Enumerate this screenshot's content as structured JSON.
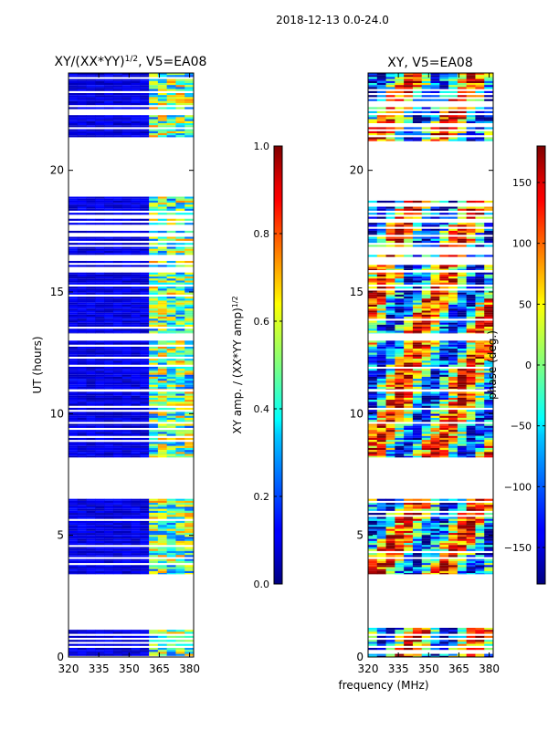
{
  "figure_title": "2018-12-13 0.0-24.0",
  "xlabel_shared": "frequency (MHz)",
  "chart_data": [
    {
      "type": "heatmap",
      "title": "XY/(XX*YY)",
      "title_sup": "1/2",
      "title_suffix": ", V5=EA08",
      "xlabel": "",
      "ylabel": "UT (hours)",
      "xlim": [
        320,
        382
      ],
      "ylim": [
        0,
        24
      ],
      "x_ticks": [
        320,
        335,
        350,
        365,
        380
      ],
      "y_ticks": [
        0,
        5,
        10,
        15,
        20
      ],
      "colorbar": {
        "label": "XY amp. / (XX*YY amp)",
        "label_sup": "1/2",
        "range": [
          0.0,
          1.0
        ],
        "ticks": [
          "0.0",
          "0.2",
          "0.4",
          "0.6",
          "0.8",
          "1.0"
        ],
        "colormap": "jet"
      },
      "data_blocks": [
        {
          "t_start": 0.0,
          "t_end": 1.2,
          "style": "sparse"
        },
        {
          "t_start": 3.4,
          "t_end": 6.5,
          "style": "dense"
        },
        {
          "t_start": 8.2,
          "t_end": 10.9,
          "style": "dense"
        },
        {
          "t_start": 11.0,
          "t_end": 13.0,
          "style": "dense"
        },
        {
          "t_start": 13.3,
          "t_end": 15.8,
          "style": "dense"
        },
        {
          "t_start": 15.9,
          "t_end": 19.0,
          "style": "sparse"
        },
        {
          "t_start": 21.2,
          "t_end": 24.0,
          "style": "sparse"
        }
      ],
      "notes": "amplitude mostly low (~0.05) from 320-361 MHz; elevated 0.3-0.7 in band 362-381 MHz"
    },
    {
      "type": "heatmap",
      "title": "XY, V5=EA08",
      "xlabel": "",
      "ylabel": "",
      "xlim": [
        320,
        382
      ],
      "ylim": [
        0,
        24
      ],
      "x_ticks": [
        320,
        335,
        350,
        365,
        380
      ],
      "y_ticks": [
        0,
        5,
        10,
        15,
        20
      ],
      "colorbar": {
        "label": "phase (deg.)",
        "range": [
          -180,
          180
        ],
        "ticks": [
          "−150",
          "−100",
          "−50",
          "0",
          "50",
          "100",
          "150"
        ],
        "tick_values": [
          -150,
          -100,
          -50,
          0,
          50,
          100,
          150
        ],
        "colormap": "jet"
      },
      "data_blocks": [
        {
          "t_start": 0.0,
          "t_end": 1.2,
          "style": "sparse"
        },
        {
          "t_start": 3.4,
          "t_end": 6.5,
          "style": "dense"
        },
        {
          "t_start": 8.2,
          "t_end": 10.9,
          "style": "dense"
        },
        {
          "t_start": 11.0,
          "t_end": 13.0,
          "style": "dense"
        },
        {
          "t_start": 13.3,
          "t_end": 15.8,
          "style": "dense"
        },
        {
          "t_start": 15.9,
          "t_end": 19.0,
          "style": "sparse"
        },
        {
          "t_start": 21.2,
          "t_end": 24.0,
          "style": "sparse"
        }
      ],
      "notes": "phase values span full -180 to 180 range"
    }
  ]
}
